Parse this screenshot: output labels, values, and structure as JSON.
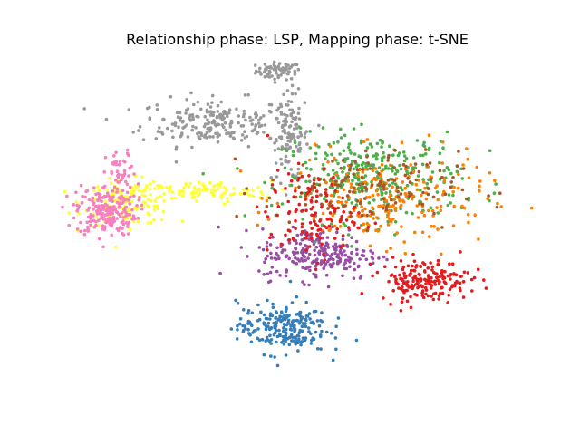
{
  "chart_data": {
    "type": "scatter",
    "title": "Relationship phase: LSP, Mapping phase: t-SNE",
    "axes_visible": false,
    "grid": false,
    "legend": "none",
    "xlim": [
      -60,
      60
    ],
    "ylim": [
      -45,
      45
    ],
    "series": [
      {
        "color": "#999999",
        "clusters": [
          {
            "cx": -5,
            "cy": 40,
            "sx": 3,
            "sy": 1.2,
            "n": 70
          },
          {
            "cx": -22,
            "cy": 26,
            "sx": 10,
            "sy": 3.2,
            "n": 210
          },
          {
            "cx": -2,
            "cy": 22,
            "sx": 2.5,
            "sy": 6,
            "n": 110
          }
        ]
      },
      {
        "color": "#ffff33",
        "clusters": [
          {
            "cx": -45,
            "cy": 4,
            "sx": 6,
            "sy": 3,
            "n": 150
          },
          {
            "cx": -25,
            "cy": 7,
            "sx": 9,
            "sy": 1.5,
            "n": 90
          }
        ]
      },
      {
        "color": "#f781bf",
        "clusters": [
          {
            "cx": -51,
            "cy": 2,
            "sx": 4,
            "sy": 3.5,
            "n": 220
          },
          {
            "cx": -47,
            "cy": 12,
            "sx": 2,
            "sy": 3,
            "n": 40
          }
        ]
      },
      {
        "color": "#4daf4a",
        "clusters": [
          {
            "cx": 20,
            "cy": 11,
            "sx": 12,
            "sy": 6,
            "n": 330
          }
        ]
      },
      {
        "color": "#ff7f00",
        "clusters": [
          {
            "cx": 24,
            "cy": 5,
            "sx": 13,
            "sy": 6,
            "n": 230
          }
        ]
      },
      {
        "color": "#a65628",
        "clusters": [
          {
            "cx": 17,
            "cy": 8,
            "sx": 13,
            "sy": 5,
            "n": 140
          }
        ]
      },
      {
        "color": "#984ea3",
        "clusters": [
          {
            "cx": 6,
            "cy": -10,
            "sx": 8,
            "sy": 3.5,
            "n": 240
          }
        ]
      },
      {
        "color": "#e41a1c",
        "clusters": [
          {
            "cx": 34,
            "cy": -17,
            "sx": 6,
            "sy": 2.8,
            "n": 190
          },
          {
            "cx": 4,
            "cy": 1,
            "sx": 6,
            "sy": 6,
            "n": 130
          }
        ]
      },
      {
        "color": "#377eb8",
        "clusters": [
          {
            "cx": -4,
            "cy": -30,
            "sx": 6,
            "sy": 3.5,
            "n": 230
          }
        ]
      }
    ]
  }
}
